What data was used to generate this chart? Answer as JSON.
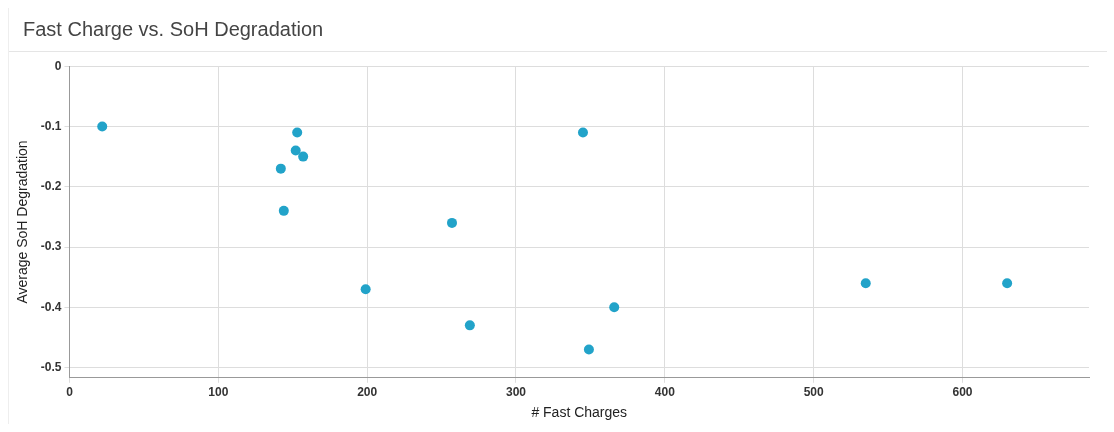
{
  "chart_data": {
    "type": "scatter",
    "title": "Fast Charge vs. SoH Degradation",
    "xlabel": "# Fast Charges",
    "ylabel": "Average SoH Degradation",
    "x": [
      22,
      153,
      152,
      157,
      142,
      144,
      257,
      199,
      269,
      345,
      366,
      349,
      535,
      630
    ],
    "series": [
      {
        "color": "#22a3c9",
        "values": [
          -0.1,
          -0.11,
          -0.14,
          -0.15,
          -0.17,
          -0.24,
          -0.26,
          -0.37,
          -0.43,
          -0.11,
          -0.4,
          -0.47,
          -0.36,
          -0.36
        ]
      }
    ],
    "xlim": [
      0,
      685
    ],
    "xticks": [
      0,
      100,
      200,
      300,
      400,
      500,
      600
    ],
    "ylim": [
      -0.517,
      0
    ],
    "yticks": [
      -0.5,
      -0.4,
      -0.3,
      -0.2,
      -0.1,
      0
    ],
    "grid": true,
    "legend": false,
    "marker": "circle"
  }
}
